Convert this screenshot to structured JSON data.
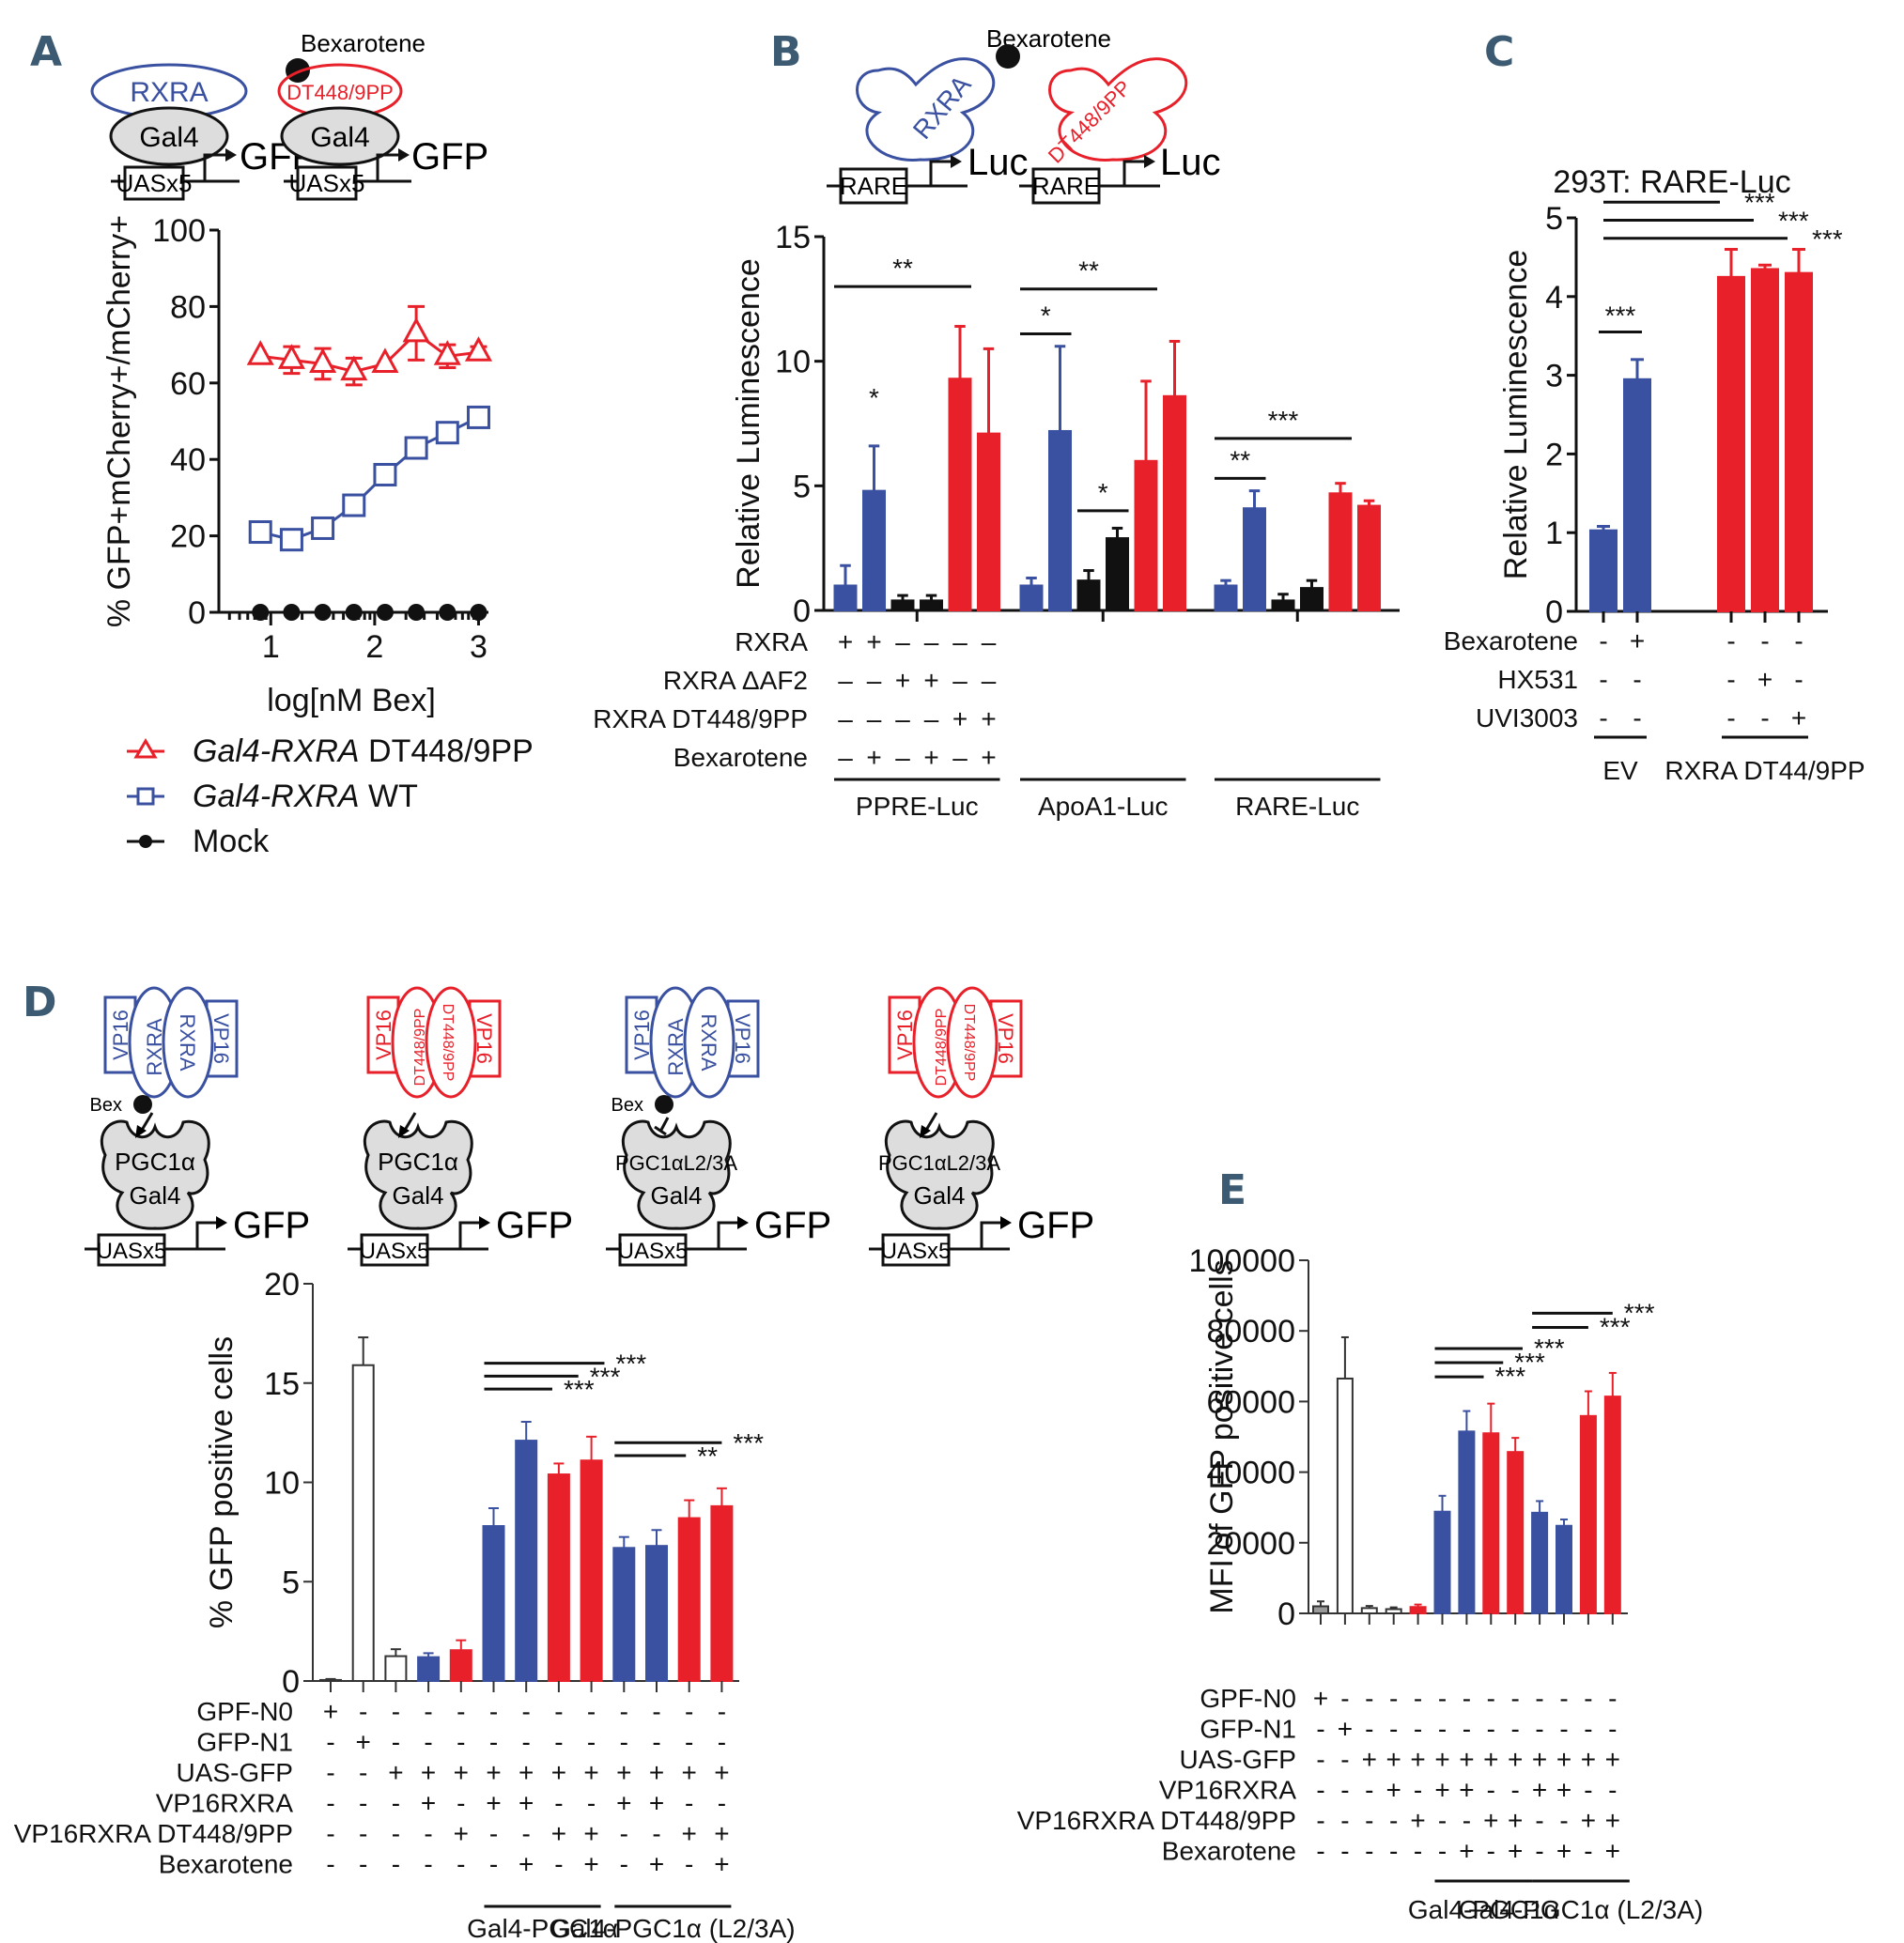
{
  "colors": {
    "blue": "#3a50a0",
    "red": "#e8202a",
    "black": "#111111",
    "white": "#ffffff",
    "gray": "#999999",
    "panel_label": "#3c5a72"
  },
  "panels": {
    "A": "A",
    "B": "B",
    "C": "C",
    "D": "D",
    "E": "E"
  },
  "diagrams": {
    "A": {
      "ligand": "Bexarotene",
      "wt": "RXRA",
      "mut": "DT448/9PP",
      "dbd": "Gal4",
      "promoter": "UASx5",
      "reporter": "GFP"
    },
    "B": {
      "ligand": "Bexarotene",
      "wt": "RXRA",
      "mut": "DT448/9PP",
      "promoter": "RARE",
      "reporter": "Luc"
    },
    "D": {
      "ligand": "Bex",
      "vp": "VP16",
      "wt": "RXRA",
      "mut": "DT448/9PP",
      "pgc": "PGC1α",
      "pgc_mut": "PGC1αL2/3A",
      "dbd": "Gal4",
      "promoter": "UASx5",
      "reporter": "GFP"
    }
  },
  "chart_data": [
    {
      "panel": "A",
      "type": "line",
      "xlabel": "log[nM Bex]",
      "ylabel": "% GFP+mCherry+/mCherry+",
      "xlim": [
        0.5,
        3.05
      ],
      "ylim": [
        0,
        100
      ],
      "xticks": [
        "1",
        "2",
        "3"
      ],
      "yticks": [
        "0",
        "20",
        "40",
        "60",
        "80",
        "100"
      ],
      "x": [
        0.9,
        1.2,
        1.5,
        1.8,
        2.1,
        2.4,
        2.7,
        3.0
      ],
      "series": [
        {
          "name": "Gal4-RXRA DT448/9PP",
          "name_italic": "Gal4-RXRA",
          "name_rest": " DT448/9PP",
          "marker": "triangle",
          "color": "#e8202a",
          "values": [
            67,
            66,
            65,
            63,
            65,
            73,
            67,
            68
          ],
          "errors": [
            0,
            3.5,
            4,
            3.5,
            0,
            7,
            3,
            1.5
          ]
        },
        {
          "name": "Gal4-RXRA WT",
          "name_italic": "Gal4-RXRA",
          "name_rest": " WT",
          "marker": "square",
          "color": "#3a50a0",
          "values": [
            21,
            19,
            22,
            28,
            36,
            43,
            47,
            51
          ],
          "errors": [
            0,
            0,
            0,
            0,
            0,
            0,
            0,
            0
          ]
        },
        {
          "name": "Mock",
          "name_italic": "",
          "name_rest": "Mock",
          "marker": "circle",
          "color": "#111111",
          "values": [
            0,
            0,
            0,
            0,
            0,
            0,
            0,
            0
          ],
          "errors": [
            0,
            0,
            0,
            0,
            0,
            0,
            0,
            0
          ]
        }
      ],
      "legend": "bottom"
    },
    {
      "panel": "B",
      "type": "bar",
      "ylabel": "Relative Luminescence",
      "ylim": [
        0,
        15
      ],
      "yticks": [
        "0",
        "5",
        "10",
        "15"
      ],
      "groups": [
        "PPRE-Luc",
        "ApoA1-Luc",
        "RARE-Luc"
      ],
      "bar_colors": [
        "blue",
        "blue",
        "black",
        "black",
        "red",
        "red"
      ],
      "values": [
        [
          1.0,
          4.8,
          0.4,
          0.4,
          9.3,
          7.1
        ],
        [
          1.0,
          7.2,
          1.2,
          2.9,
          6.0,
          8.6
        ],
        [
          1.0,
          4.1,
          0.4,
          0.9,
          4.7,
          4.2
        ]
      ],
      "errors": [
        [
          0.8,
          1.8,
          0.2,
          0.2,
          2.1,
          3.4
        ],
        [
          0.3,
          3.4,
          0.4,
          0.4,
          3.2,
          2.2
        ],
        [
          0.2,
          0.7,
          0.25,
          0.3,
          0.4,
          0.2
        ]
      ],
      "conditions": [
        {
          "label": "RXRA",
          "signs": [
            "+",
            "+",
            "–",
            "–",
            "–",
            "–"
          ]
        },
        {
          "label": "RXRA ΔAF2",
          "signs": [
            "–",
            "–",
            "+",
            "+",
            "–",
            "–"
          ]
        },
        {
          "label": "RXRA DT448/9PP",
          "signs": [
            "–",
            "–",
            "–",
            "–",
            "+",
            "+"
          ]
        },
        {
          "label": "Bexarotene",
          "signs": [
            "–",
            "+",
            "–",
            "+",
            "–",
            "+"
          ]
        }
      ],
      "significance": [
        {
          "group": 0,
          "from": 0,
          "to": 4,
          "label": "**",
          "y": 13
        },
        {
          "group": 0,
          "from": 1,
          "to": 1,
          "label": "*",
          "y": 7.8
        },
        {
          "group": 1,
          "from": 0,
          "to": 4,
          "label": "**",
          "y": 12.9
        },
        {
          "group": 1,
          "from": 0,
          "to": 1,
          "label": "*",
          "y": 11.1
        },
        {
          "group": 1,
          "from": 2,
          "to": 3,
          "label": "*",
          "y": 4.0
        },
        {
          "group": 2,
          "from": 0,
          "to": 4,
          "label": "***",
          "y": 6.9
        },
        {
          "group": 2,
          "from": 0,
          "to": 1,
          "label": "**",
          "y": 5.3
        }
      ]
    },
    {
      "panel": "C",
      "type": "bar",
      "title": "293T: RARE-Luc",
      "ylabel": "Relative Luminescence",
      "ylim": [
        0,
        5
      ],
      "yticks": [
        "0",
        "1",
        "2",
        "3",
        "4",
        "5"
      ],
      "categories": [
        "EV -Bex",
        "EV +Bex",
        "DT448/9PP",
        "DT448/9PP +HX531",
        "DT448/9PP +UVI3003"
      ],
      "bar_colors": [
        "blue",
        "blue",
        "red",
        "red",
        "red"
      ],
      "values": [
        1.03,
        2.95,
        4.25,
        4.35,
        4.3
      ],
      "errors": [
        0.05,
        0.25,
        0.35,
        0.05,
        0.3
      ],
      "conditions": [
        {
          "label": "Bexarotene",
          "signs": [
            "-",
            "+",
            "-",
            "-",
            "-"
          ]
        },
        {
          "label": "HX531",
          "signs": [
            "-",
            "-",
            "-",
            "+",
            "-"
          ]
        },
        {
          "label": "UVI3003",
          "signs": [
            "-",
            "-",
            "-",
            "-",
            "+"
          ]
        }
      ],
      "group_labels": [
        {
          "label": "EV",
          "from": 0,
          "to": 1
        },
        {
          "label": "RXRA DT44/9PP",
          "from": 2,
          "to": 4
        }
      ],
      "significance": [
        {
          "from": 0,
          "to": 1,
          "label": "***",
          "y": 3.55
        },
        {
          "from": 0,
          "to": 2,
          "label": "***",
          "y": 5.2
        },
        {
          "from": 0,
          "to": 3,
          "label": "***",
          "y": 4.97
        },
        {
          "from": 0,
          "to": 4,
          "label": "***",
          "y": 4.74
        }
      ]
    },
    {
      "panel": "D",
      "type": "bar",
      "ylabel": "% GFP positive cells",
      "ylim": [
        0,
        20
      ],
      "yticks": [
        "0",
        "5",
        "10",
        "15",
        "20"
      ],
      "bar_colors": [
        "gray",
        "white",
        "white",
        "blue",
        "red",
        "blue",
        "blue",
        "red",
        "red",
        "blue",
        "blue",
        "red",
        "red"
      ],
      "values": [
        0.05,
        15.9,
        1.25,
        1.2,
        1.55,
        7.8,
        12.1,
        10.4,
        11.1,
        6.7,
        6.8,
        8.2,
        8.8
      ],
      "errors": [
        0.05,
        1.4,
        0.35,
        0.2,
        0.5,
        0.9,
        0.95,
        0.55,
        1.2,
        0.55,
        0.8,
        0.9,
        0.9
      ],
      "conditions": [
        {
          "label": "GPF-N0",
          "signs": [
            "+",
            "-",
            "-",
            "-",
            "-",
            "-",
            "-",
            "-",
            "-",
            "-",
            "-",
            "-",
            "-"
          ]
        },
        {
          "label": "GFP-N1",
          "signs": [
            "-",
            "+",
            "-",
            "-",
            "-",
            "-",
            "-",
            "-",
            "-",
            "-",
            "-",
            "-",
            "-"
          ]
        },
        {
          "label": "UAS-GFP",
          "signs": [
            "-",
            "-",
            "+",
            "+",
            "+",
            "+",
            "+",
            "+",
            "+",
            "+",
            "+",
            "+",
            "+"
          ]
        },
        {
          "label": "VP16RXRA",
          "signs": [
            "-",
            "-",
            "-",
            "+",
            "-",
            "+",
            "+",
            "-",
            "-",
            "+",
            "+",
            "-",
            "-"
          ]
        },
        {
          "label": "VP16RXRA DT448/9PP",
          "signs": [
            "-",
            "-",
            "-",
            "-",
            "+",
            "-",
            "-",
            "+",
            "+",
            "-",
            "-",
            "+",
            "+"
          ]
        },
        {
          "label": "Bexarotene",
          "signs": [
            "-",
            "-",
            "-",
            "-",
            "-",
            "-",
            "+",
            "-",
            "+",
            "-",
            "+",
            "-",
            "+"
          ]
        }
      ],
      "group_labels": [
        {
          "label": "Gal4-PGC1α",
          "from": 5,
          "to": 8
        },
        {
          "label": "Gal4-PGC1α (L2/3A)",
          "from": 9,
          "to": 12
        }
      ],
      "significance": [
        {
          "from": 5,
          "to": 8.4,
          "label": "***",
          "y": 16.0
        },
        {
          "from": 5,
          "to": 7.6,
          "label": "***",
          "y": 15.35
        },
        {
          "from": 5,
          "to": 6.8,
          "label": "***",
          "y": 14.7
        },
        {
          "from": 9,
          "to": 12,
          "label": "***",
          "y": 12.0
        },
        {
          "from": 9,
          "to": 10.9,
          "label": "**",
          "y": 11.35
        }
      ]
    },
    {
      "panel": "E",
      "type": "bar",
      "ylabel": "MFI of GFP positive cells",
      "ylim": [
        0,
        100000
      ],
      "yticks": [
        "0",
        "20000",
        "40000",
        "60000",
        "80000",
        "100000"
      ],
      "bar_colors": [
        "gray",
        "white",
        "white",
        "white",
        "red",
        "blue",
        "blue",
        "red",
        "red",
        "blue",
        "blue",
        "red",
        "red"
      ],
      "values": [
        2000,
        66500,
        1500,
        1200,
        1800,
        28800,
        51500,
        51000,
        45700,
        28500,
        24800,
        55900,
        61400
      ],
      "errors": [
        1400,
        11700,
        600,
        500,
        700,
        4500,
        5800,
        8400,
        4000,
        3300,
        1800,
        7000,
        6700
      ],
      "conditions": [
        {
          "label": "GPF-N0",
          "signs": [
            "+",
            "-",
            "-",
            "-",
            "-",
            "-",
            "-",
            "-",
            "-",
            "-",
            "-",
            "-",
            "-"
          ]
        },
        {
          "label": "GFP-N1",
          "signs": [
            "-",
            "+",
            "-",
            "-",
            "-",
            "-",
            "-",
            "-",
            "-",
            "-",
            "-",
            "-",
            "-"
          ]
        },
        {
          "label": "UAS-GFP",
          "signs": [
            "-",
            "-",
            "+",
            "+",
            "+",
            "+",
            "+",
            "+",
            "+",
            "+",
            "+",
            "+",
            "+"
          ]
        },
        {
          "label": "VP16RXRA",
          "signs": [
            "-",
            "-",
            "-",
            "+",
            "-",
            "+",
            "+",
            "-",
            "-",
            "+",
            "+",
            "-",
            "-"
          ]
        },
        {
          "label": "VP16RXRA DT448/9PP",
          "signs": [
            "-",
            "-",
            "-",
            "-",
            "+",
            "-",
            "-",
            "+",
            "+",
            "-",
            "-",
            "+",
            "+"
          ]
        },
        {
          "label": "Bexarotene",
          "signs": [
            "-",
            "-",
            "-",
            "-",
            "-",
            "-",
            "+",
            "-",
            "+",
            "-",
            "+",
            "-",
            "+"
          ]
        }
      ],
      "group_labels": [
        {
          "label": "Gal4-PGC1α",
          "from": 5,
          "to": 8
        },
        {
          "label": "Gal4-PGC1α (L2/3A)",
          "from": 9,
          "to": 12
        }
      ],
      "significance": [
        {
          "from": 5,
          "to": 8.3,
          "label": "***",
          "y": 75000
        },
        {
          "from": 5,
          "to": 7.5,
          "label": "***",
          "y": 71000
        },
        {
          "from": 5,
          "to": 6.7,
          "label": "***",
          "y": 67000
        },
        {
          "from": 9,
          "to": 12,
          "label": "***",
          "y": 85000
        },
        {
          "from": 9,
          "to": 11,
          "label": "***",
          "y": 81000
        }
      ]
    }
  ]
}
